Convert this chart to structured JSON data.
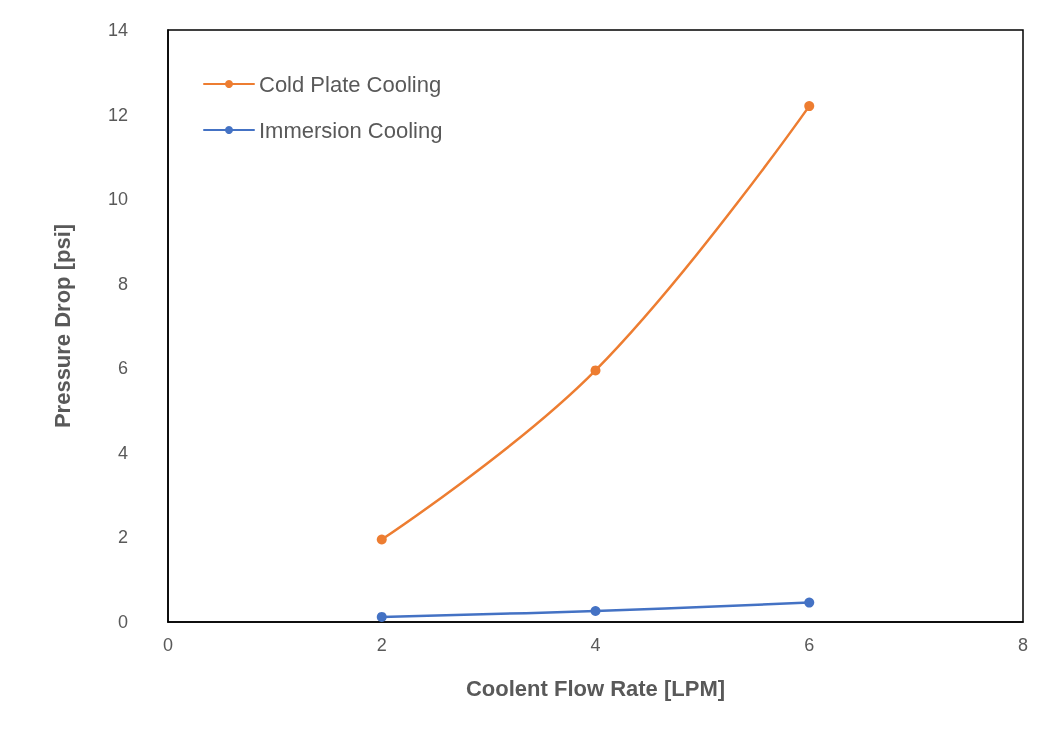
{
  "chart_data": {
    "type": "line",
    "xlabel": "Coolent Flow Rate [LPM]",
    "ylabel": "Pressure Drop [psi]",
    "x": [
      2,
      4,
      6
    ],
    "series": [
      {
        "name": "Cold Plate Cooling",
        "color": "#ed7d31",
        "values": [
          1.95,
          5.95,
          12.2
        ]
      },
      {
        "name": "Immersion Cooling",
        "color": "#4472c4",
        "values": [
          0.12,
          0.26,
          0.46
        ]
      }
    ],
    "xlim": [
      0,
      8
    ],
    "xticks": [
      0,
      2,
      4,
      6,
      8
    ],
    "ylim": [
      0,
      14
    ],
    "yticks": [
      0,
      2,
      4,
      6,
      8,
      10,
      12,
      14
    ],
    "legend": "top left",
    "marker": "circle",
    "line_style": "solid"
  }
}
